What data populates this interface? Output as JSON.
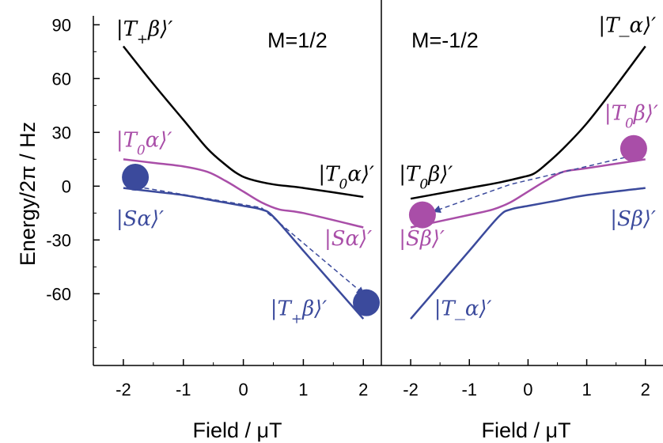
{
  "chart_data": {
    "type": "line",
    "ylabel": "Energy/2π / Hz",
    "xlabel": "Field / μT",
    "ylim": [
      -100,
      95
    ],
    "yticks": [
      90,
      60,
      30,
      0,
      -30,
      -60
    ],
    "xlim": [
      -2.5,
      2.3
    ],
    "xticks": [
      -2,
      -1,
      0,
      1,
      2
    ],
    "grid": false,
    "colors": {
      "black": "#000000",
      "magenta": "#a94ea8",
      "blue": "#3b4a9c"
    },
    "panels": [
      {
        "title": "M=1/2",
        "series": [
          {
            "color": "black",
            "points": [
              [
                -2,
                78
              ],
              [
                -1.5,
                57
              ],
              [
                -1,
                37
              ],
              [
                -0.6,
                21
              ],
              [
                -0.3,
                12
              ],
              [
                -0.1,
                7
              ],
              [
                0.1,
                4
              ],
              [
                0.5,
                1
              ],
              [
                1,
                -1
              ],
              [
                2,
                -6
              ]
            ]
          },
          {
            "color": "magenta",
            "points": [
              [
                -2,
                15
              ],
              [
                -1.5,
                13
              ],
              [
                -1,
                11
              ],
              [
                -0.6,
                8
              ],
              [
                -0.3,
                3
              ],
              [
                0,
                -3
              ],
              [
                0.3,
                -9
              ],
              [
                0.6,
                -13
              ],
              [
                1,
                -15
              ],
              [
                2,
                -23
              ]
            ]
          },
          {
            "color": "blue",
            "points": [
              [
                -2,
                -1
              ],
              [
                -1.5,
                -3
              ],
              [
                -1,
                -5
              ],
              [
                -0.5,
                -8
              ],
              [
                0,
                -11
              ],
              [
                0.3,
                -13
              ],
              [
                0.5,
                -17
              ],
              [
                1,
                -36
              ],
              [
                1.5,
                -55
              ],
              [
                2,
                -74
              ]
            ]
          }
        ],
        "markers": [
          {
            "x": -1.8,
            "y": 5,
            "color": "blue"
          },
          {
            "x": 2.05,
            "y": -65,
            "color": "blue"
          }
        ],
        "arrow": {
          "points": [
            [
              -1.65,
              -1
            ],
            [
              0.3,
              -12
            ],
            [
              2.0,
              -60
            ]
          ]
        },
        "annotations": [
          {
            "text_main": "|T",
            "sub": "+",
            "tail": "β⟩′",
            "color": "black",
            "x": -2.12,
            "y": 84
          },
          {
            "text_main": "|T",
            "sub": "0",
            "tail": "α⟩′",
            "color": "black",
            "x": 1.25,
            "y": 3
          },
          {
            "text_main": "|T",
            "sub": "0",
            "tail": "α⟩′",
            "color": "magenta",
            "x": -2.12,
            "y": 22
          },
          {
            "text_main": "|Sα⟩′",
            "sub": "",
            "tail": "",
            "color": "blue",
            "x": -2.12,
            "y": -22
          },
          {
            "text_main": "|Sα⟩′",
            "sub": "",
            "tail": "",
            "color": "magenta",
            "x": 1.35,
            "y": -33
          },
          {
            "text_main": "|T",
            "sub": "+",
            "tail": "β⟩′",
            "color": "blue",
            "x": 0.45,
            "y": -72
          }
        ]
      },
      {
        "title": "M=-1/2",
        "series": [
          {
            "color": "black",
            "points": [
              [
                -2,
                -7
              ],
              [
                -1,
                -1
              ],
              [
                -0.5,
                2
              ],
              [
                -0.1,
                5
              ],
              [
                0.1,
                7
              ],
              [
                0.3,
                12
              ],
              [
                0.6,
                21
              ],
              [
                1,
                35
              ],
              [
                1.5,
                56
              ],
              [
                2,
                78
              ]
            ]
          },
          {
            "color": "magenta",
            "points": [
              [
                -2,
                -23
              ],
              [
                -1,
                -16
              ],
              [
                -0.6,
                -13
              ],
              [
                -0.3,
                -9
              ],
              [
                0,
                -3
              ],
              [
                0.3,
                3
              ],
              [
                0.6,
                8
              ],
              [
                1,
                10
              ],
              [
                2,
                15
              ]
            ]
          },
          {
            "color": "blue",
            "points": [
              [
                -2,
                -74
              ],
              [
                -1.5,
                -55
              ],
              [
                -1,
                -36
              ],
              [
                -0.5,
                -17
              ],
              [
                -0.3,
                -13
              ],
              [
                0,
                -11
              ],
              [
                0.5,
                -8
              ],
              [
                1,
                -5
              ],
              [
                2,
                -1
              ]
            ]
          }
        ],
        "markers": [
          {
            "x": -1.8,
            "y": -16,
            "color": "magenta"
          },
          {
            "x": 1.8,
            "y": 21,
            "color": "magenta"
          }
        ],
        "arrow": {
          "points": [
            [
              1.65,
              16
            ],
            [
              -0.3,
              1
            ],
            [
              -1.6,
              -14
            ]
          ]
        },
        "annotations": [
          {
            "text_main": "|T_α⟩′",
            "sub": "",
            "tail": "",
            "color": "black",
            "x": 1.2,
            "y": 86
          },
          {
            "text_main": "|T",
            "sub": "0",
            "tail": "β⟩′",
            "color": "magenta",
            "x": 1.3,
            "y": 37
          },
          {
            "text_main": "|T",
            "sub": "0",
            "tail": "β⟩′",
            "color": "black",
            "x": -2.2,
            "y": 3
          },
          {
            "text_main": "|Sβ⟩′",
            "sub": "",
            "tail": "",
            "color": "blue",
            "x": 1.4,
            "y": -22
          },
          {
            "text_main": "|Sβ⟩′",
            "sub": "",
            "tail": "",
            "color": "magenta",
            "x": -2.2,
            "y": -33
          },
          {
            "text_main": "|T_α⟩′",
            "sub": "",
            "tail": "",
            "color": "blue",
            "x": -1.6,
            "y": -72
          }
        ]
      }
    ]
  }
}
